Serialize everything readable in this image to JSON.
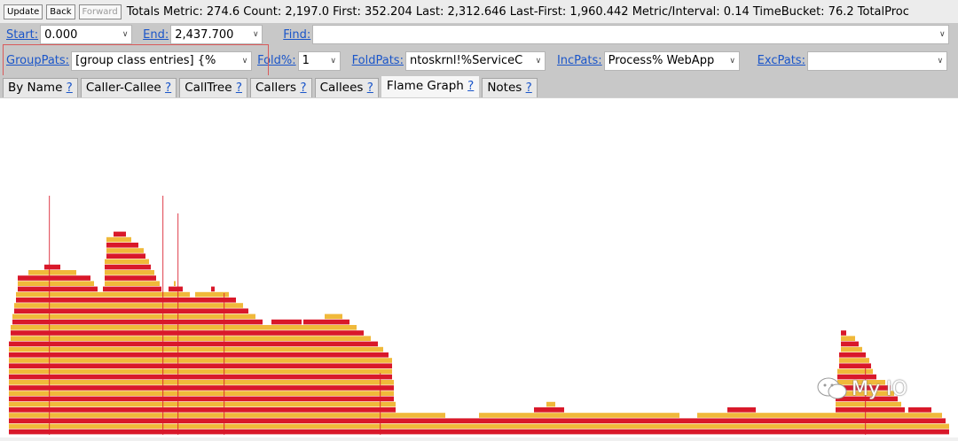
{
  "toolbar": {
    "update_label": "Update",
    "back_label": "Back",
    "forward_label": "Forward",
    "stats": "Totals Metric: 274.6  Count: 2,197.0  First: 352.204  Last: 2,312.646  Last-First: 1,960.442  Metric/Interval: 0.14  TimeBucket: 76.2  TotalProc"
  },
  "range_row": {
    "start_label": "Start:",
    "start_value": "0.000",
    "end_label": "End:",
    "end_value": "2,437.700",
    "find_label": "Find:",
    "find_value": ""
  },
  "filter_row": {
    "grouppats_label": "GroupPats:",
    "grouppats_value": "[group class entries]       {%",
    "foldpct_label": "Fold%:",
    "foldpct_value": "1",
    "foldpats_label": "FoldPats:",
    "foldpats_value": "ntoskrnl!%ServiceC",
    "incpats_label": "IncPats:",
    "incpats_value": "Process% WebApp",
    "excpats_label": "ExcPats:",
    "excpats_value": ""
  },
  "tabs": [
    {
      "label": "By Name",
      "help": "?"
    },
    {
      "label": "Caller-Callee",
      "help": "?"
    },
    {
      "label": "CallTree",
      "help": "?"
    },
    {
      "label": "Callers",
      "help": "?"
    },
    {
      "label": "Callees",
      "help": "?"
    },
    {
      "label": "Flame Graph",
      "help": "?"
    },
    {
      "label": "Notes",
      "help": "?"
    }
  ],
  "active_tab": "Flame Graph",
  "flame_graph": {
    "colors": [
      "#d9182a",
      "#f0b93a"
    ],
    "max_depth": 31
  },
  "watermark": {
    "text": "My IO",
    "icon": "wechat-icon"
  },
  "colors": {
    "toolbar_bg": "#ececec",
    "row_bg": "#c8c8c8",
    "link": "#1a55c9",
    "highlight_box": "#d95a5a"
  }
}
